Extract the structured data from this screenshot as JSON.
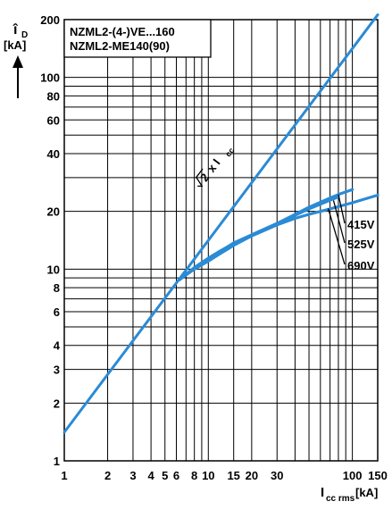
{
  "chart_data": {
    "type": "line",
    "scale": "log-log",
    "grid": true,
    "line_color": "#2a8bd6",
    "xlim": [
      1,
      150
    ],
    "ylim": [
      1,
      200
    ],
    "x_ticks": [
      1,
      2,
      3,
      4,
      5,
      6,
      8,
      10,
      15,
      20,
      30,
      100,
      150
    ],
    "x_tick_labels": [
      "1",
      "2",
      "3",
      "4",
      "5",
      "6",
      "8",
      "10",
      "15",
      "20",
      "30",
      "100",
      "150"
    ],
    "y_ticks": [
      1,
      2,
      3,
      4,
      6,
      8,
      10,
      20,
      40,
      60,
      80,
      100,
      200
    ],
    "y_tick_labels": [
      "1",
      "2",
      "3",
      "4",
      "6",
      "8",
      "10",
      "20",
      "40",
      "60",
      "80",
      "100",
      "200"
    ],
    "y_axis_symbol": "î",
    "y_axis_subscript": "D",
    "y_axis_unit": "[kA]",
    "x_axis_symbol": "I",
    "x_axis_subscript": "cc rms",
    "x_axis_unit": "[kA]",
    "legend_lines": [
      "NZML2-(4-)VE...160",
      "NZML2-ME140(90)"
    ],
    "reference_line": {
      "label_root": "2",
      "label_times": "x I",
      "label_subscript": "cc",
      "x": [
        1,
        150
      ],
      "y": [
        1.41,
        212
      ]
    },
    "series": [
      {
        "name": "415V",
        "x": [
          6.3,
          8,
          10,
          12,
          15,
          20,
          30,
          40,
          50,
          60,
          70,
          80,
          100
        ],
        "y": [
          8.8,
          10.2,
          11.4,
          12.4,
          13.6,
          15.1,
          17.3,
          19.3,
          21.0,
          22.3,
          23.5,
          24.5,
          26.0
        ]
      },
      {
        "name": "525V",
        "x": [
          6.3,
          8,
          10,
          12,
          15,
          20,
          30,
          40,
          50,
          60,
          70,
          80
        ],
        "y": [
          8.8,
          10.1,
          11.3,
          12.3,
          13.7,
          15.1,
          17.3,
          19.1,
          20.6,
          21.8,
          22.9,
          23.8
        ]
      },
      {
        "name": "690V",
        "x": [
          6.3,
          8,
          10,
          12,
          15,
          20,
          30,
          40,
          50,
          60,
          70,
          80,
          100,
          150
        ],
        "y": [
          8.8,
          10.0,
          11.0,
          12.0,
          13.3,
          14.9,
          17.0,
          18.4,
          19.3,
          20.0,
          20.6,
          21.2,
          22.2,
          24.3
        ]
      }
    ]
  }
}
